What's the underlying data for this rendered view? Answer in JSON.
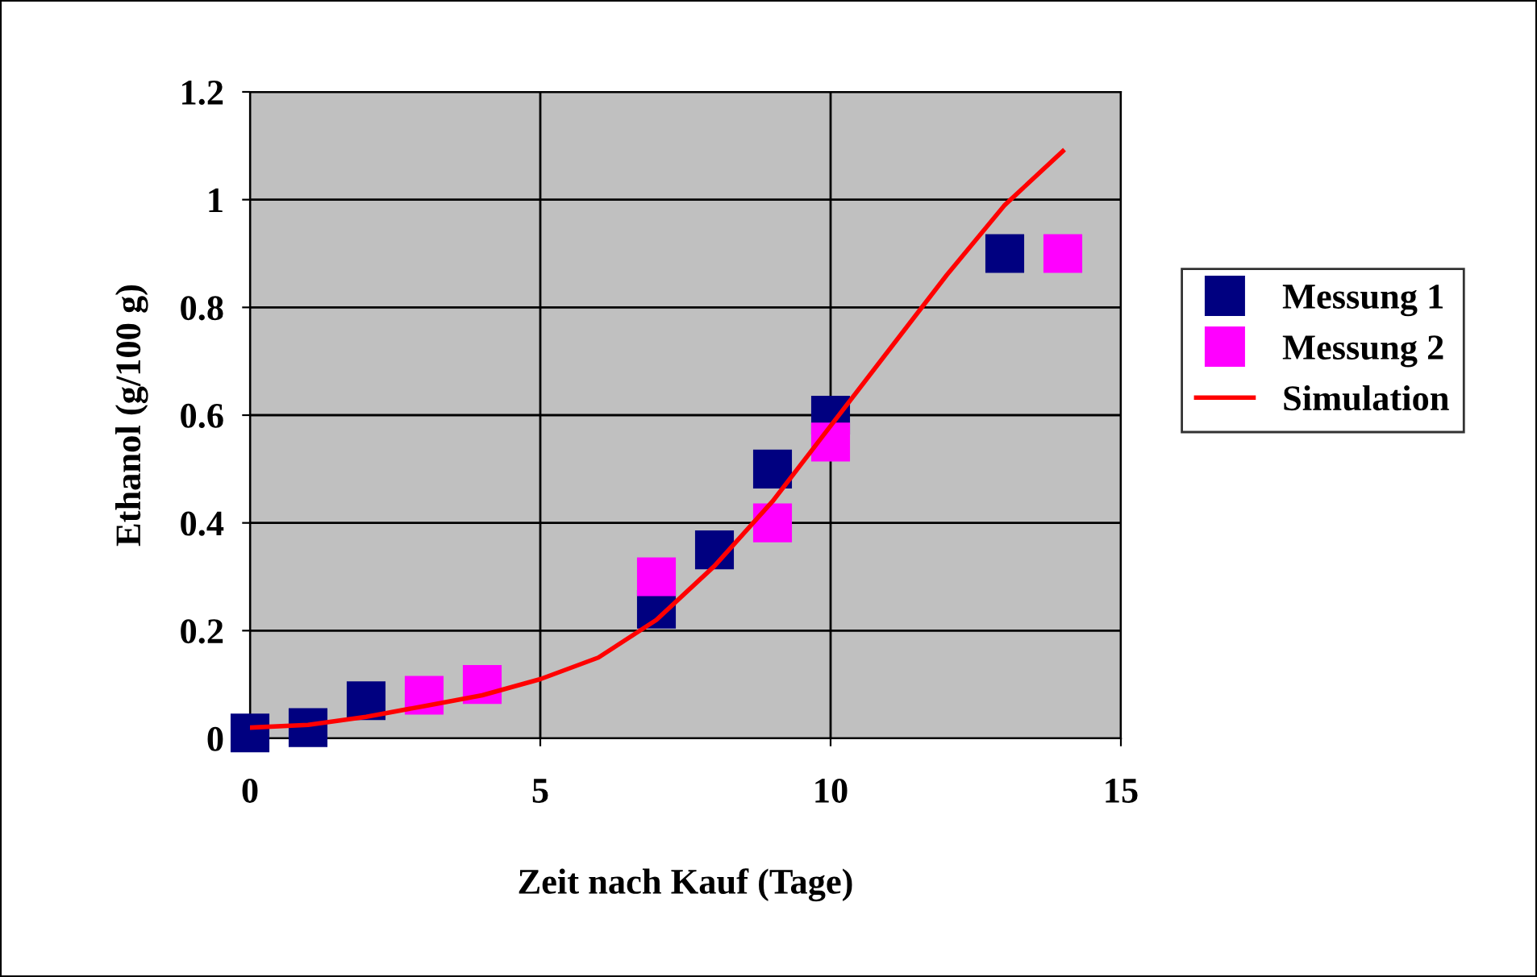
{
  "chart_data": {
    "type": "scatter",
    "xlabel": "Zeit nach Kauf (Tage)",
    "ylabel": "Ethanol (g/100 g)",
    "xlim": [
      0,
      15
    ],
    "xticks": [
      0,
      5,
      10,
      15
    ],
    "ylim": [
      0,
      1.2
    ],
    "yticks": [
      {
        "value": 0,
        "label": "0"
      },
      0.2,
      0.4,
      0.6,
      0.8,
      1,
      1.2
    ],
    "grid": true,
    "legend": "right",
    "series": [
      {
        "name": "Messung 1",
        "color": "#000080",
        "marker": "square",
        "x": [
          0,
          1,
          2,
          7,
          8,
          9,
          10,
          13
        ],
        "values": [
          0.01,
          0.02,
          0.07,
          0.24,
          0.35,
          0.5,
          0.6,
          0.9
        ]
      },
      {
        "name": "Messung 2",
        "color": "#ff00ff",
        "marker": "square",
        "x": [
          3,
          4,
          7,
          9,
          10,
          14
        ],
        "values": [
          0.08,
          0.1,
          0.3,
          0.4,
          0.55,
          0.9
        ]
      },
      {
        "name": "Simulation",
        "color": "#ff0000",
        "type": "line",
        "x": [
          0,
          1,
          2,
          3,
          4,
          5,
          6,
          7,
          8,
          9,
          10,
          11,
          12,
          13,
          14
        ],
        "values": [
          0.02,
          0.025,
          0.04,
          0.06,
          0.08,
          0.11,
          0.15,
          0.22,
          0.32,
          0.44,
          0.58,
          0.72,
          0.86,
          0.99,
          1.09
        ]
      }
    ]
  }
}
